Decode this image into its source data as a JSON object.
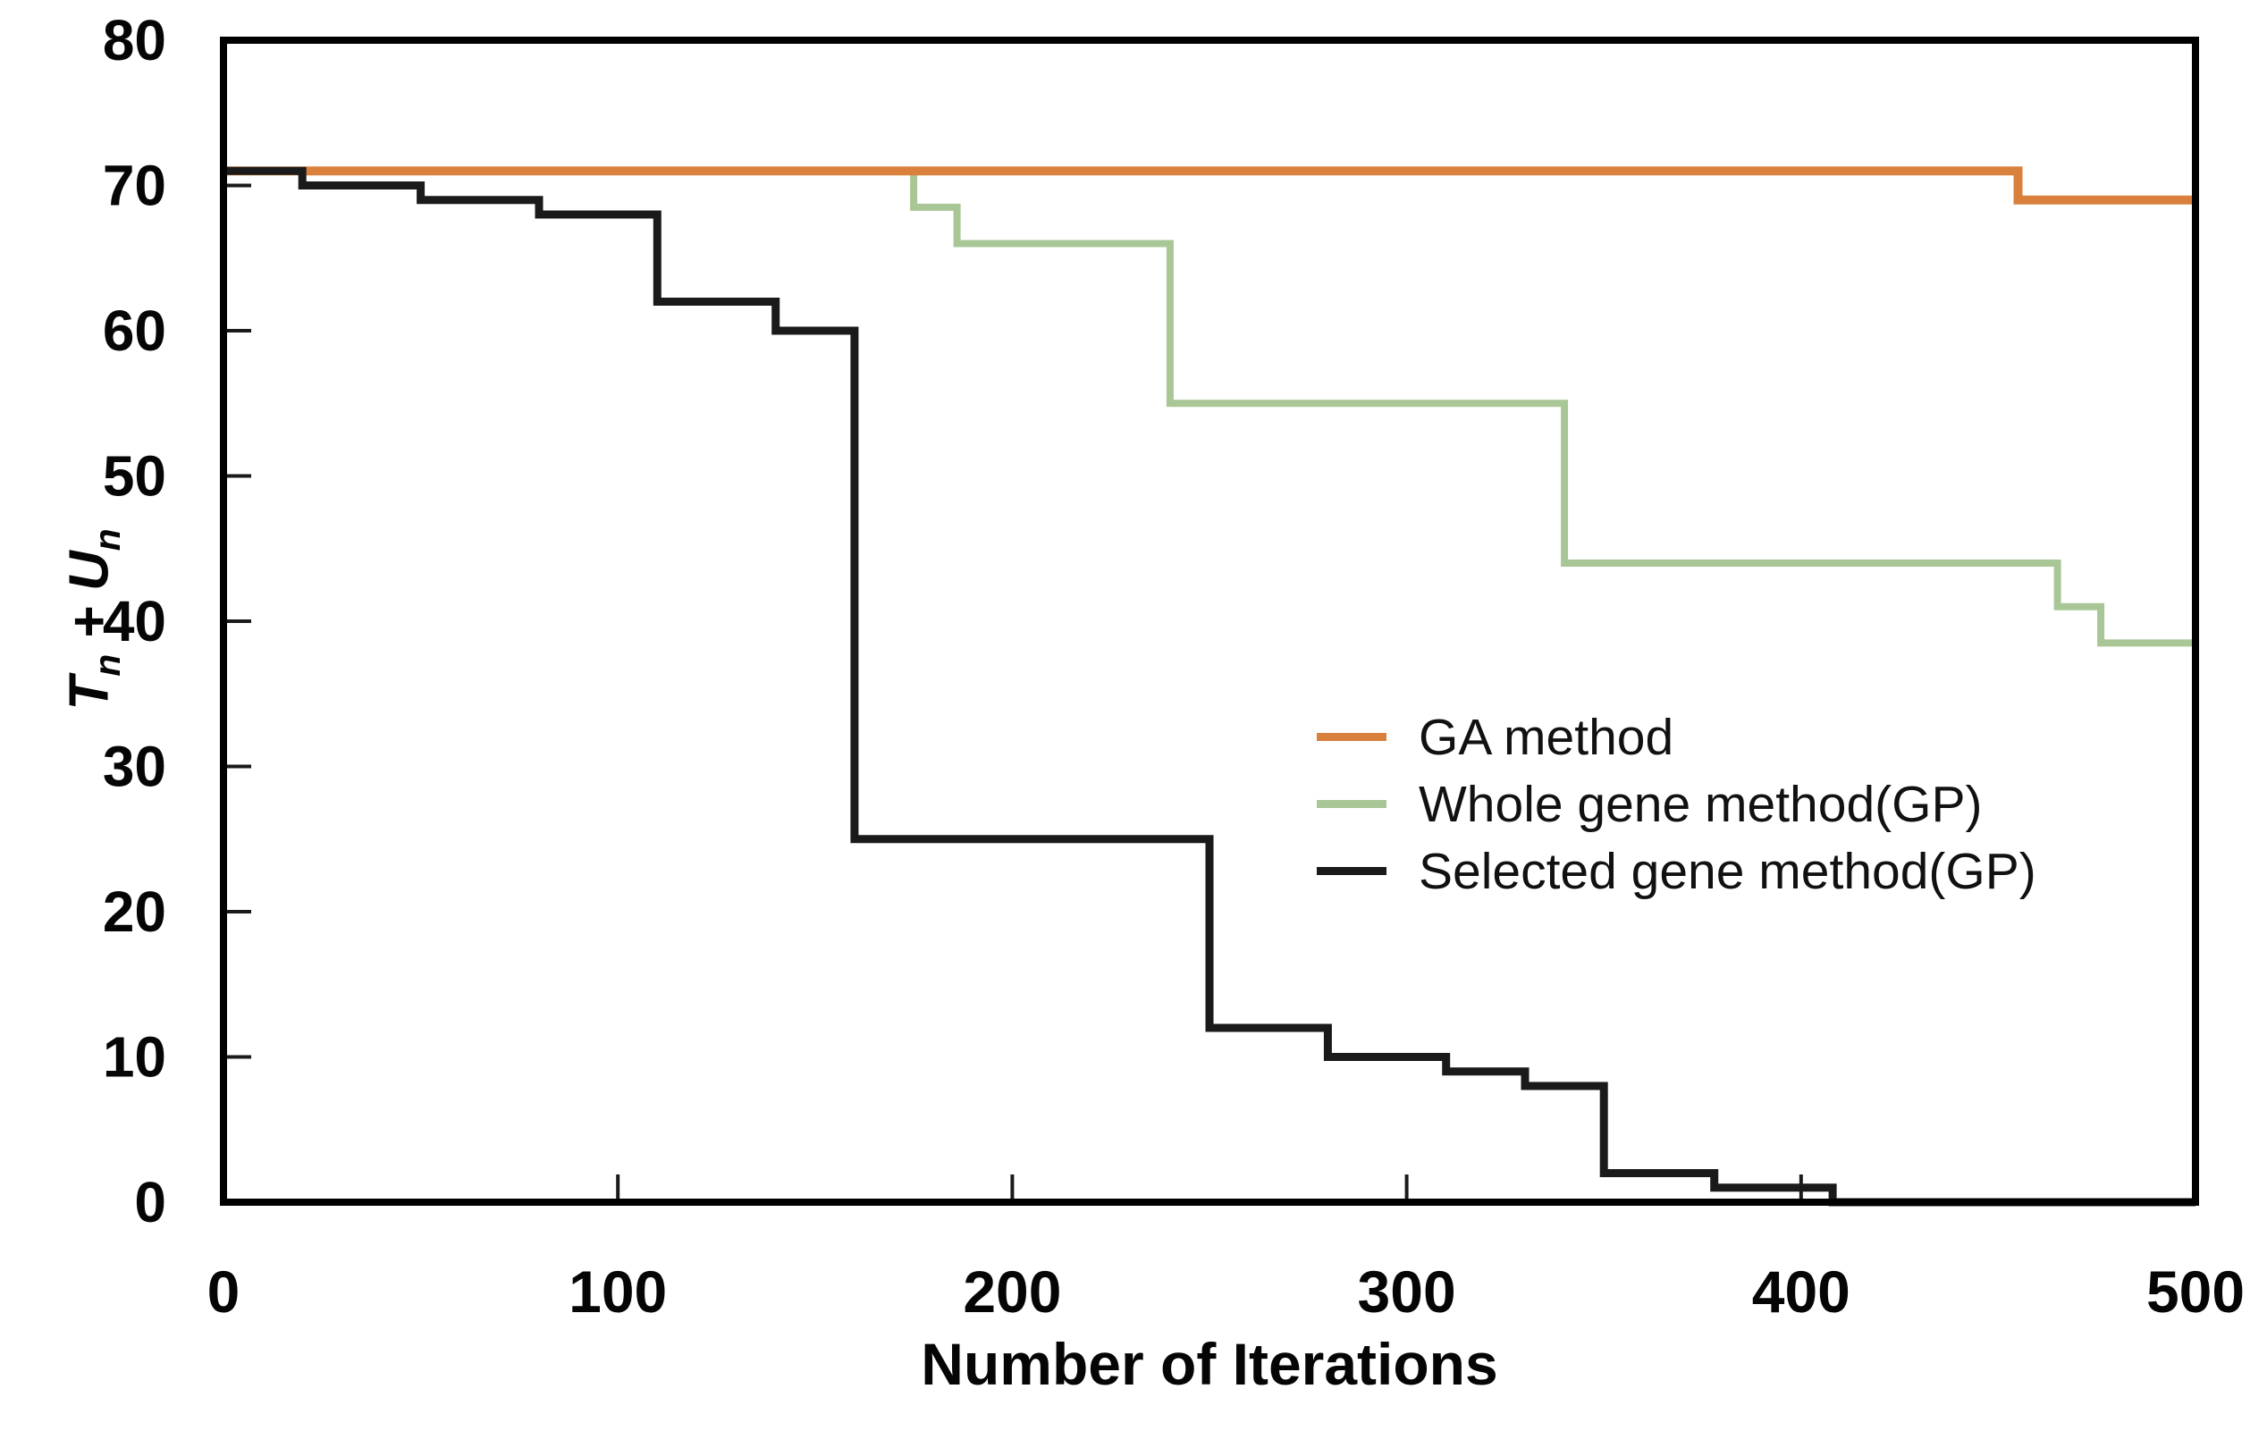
{
  "figure": {
    "background": "#ffffff",
    "frame_color": "#000000",
    "tick_color": "#1a1a1a"
  },
  "axes": {
    "x_label": "Number of Iterations",
    "y_title": {
      "var1": "T",
      "sub1": "n",
      "op": " + ",
      "var2": "U",
      "sub2": "n"
    }
  },
  "legend": {
    "items": [
      {
        "label": "GA method",
        "color": "#D9813C"
      },
      {
        "label": "Whole gene method(GP)",
        "color": "#A9C796"
      },
      {
        "label": "Selected gene method(GP)",
        "color": "#1A1A1A"
      }
    ]
  },
  "chart_data": {
    "type": "line",
    "subtype": "step",
    "title": "",
    "xlabel": "Number of Iterations",
    "ylabel": "Tn + Un",
    "xlim": [
      0,
      500
    ],
    "ylim": [
      0,
      80
    ],
    "x_ticks": [
      0,
      100,
      200,
      300,
      400,
      500
    ],
    "y_ticks": [
      0,
      10,
      20,
      30,
      40,
      50,
      60,
      70,
      80
    ],
    "grid": false,
    "legend_position": "center-right",
    "series": [
      {
        "name": "GA method",
        "color": "#D9813C",
        "stroke_width": 10,
        "points": [
          [
            0,
            71
          ],
          [
            455,
            71
          ],
          [
            455,
            69
          ],
          [
            500,
            69
          ]
        ]
      },
      {
        "name": "Whole gene method(GP)",
        "color": "#A9C796",
        "stroke_width": 8,
        "points": [
          [
            0,
            71
          ],
          [
            175,
            71
          ],
          [
            175,
            68.5
          ],
          [
            186,
            68.5
          ],
          [
            186,
            66
          ],
          [
            240,
            66
          ],
          [
            240,
            55
          ],
          [
            340,
            55
          ],
          [
            340,
            44
          ],
          [
            465,
            44
          ],
          [
            465,
            41
          ],
          [
            476,
            41
          ],
          [
            476,
            38.5
          ],
          [
            500,
            38.5
          ]
        ]
      },
      {
        "name": "Selected gene method(GP)",
        "color": "#1A1A1A",
        "stroke_width": 9,
        "points": [
          [
            0,
            71
          ],
          [
            20,
            71
          ],
          [
            20,
            70
          ],
          [
            50,
            70
          ],
          [
            50,
            69
          ],
          [
            80,
            69
          ],
          [
            80,
            68
          ],
          [
            110,
            68
          ],
          [
            110,
            62
          ],
          [
            140,
            62
          ],
          [
            140,
            60
          ],
          [
            160,
            60
          ],
          [
            160,
            25
          ],
          [
            250,
            25
          ],
          [
            250,
            12
          ],
          [
            280,
            12
          ],
          [
            280,
            10
          ],
          [
            310,
            10
          ],
          [
            310,
            9
          ],
          [
            330,
            9
          ],
          [
            330,
            8
          ],
          [
            350,
            8
          ],
          [
            350,
            2
          ],
          [
            378,
            2
          ],
          [
            378,
            1
          ],
          [
            408,
            1
          ],
          [
            408,
            0
          ],
          [
            500,
            0
          ]
        ]
      }
    ]
  }
}
